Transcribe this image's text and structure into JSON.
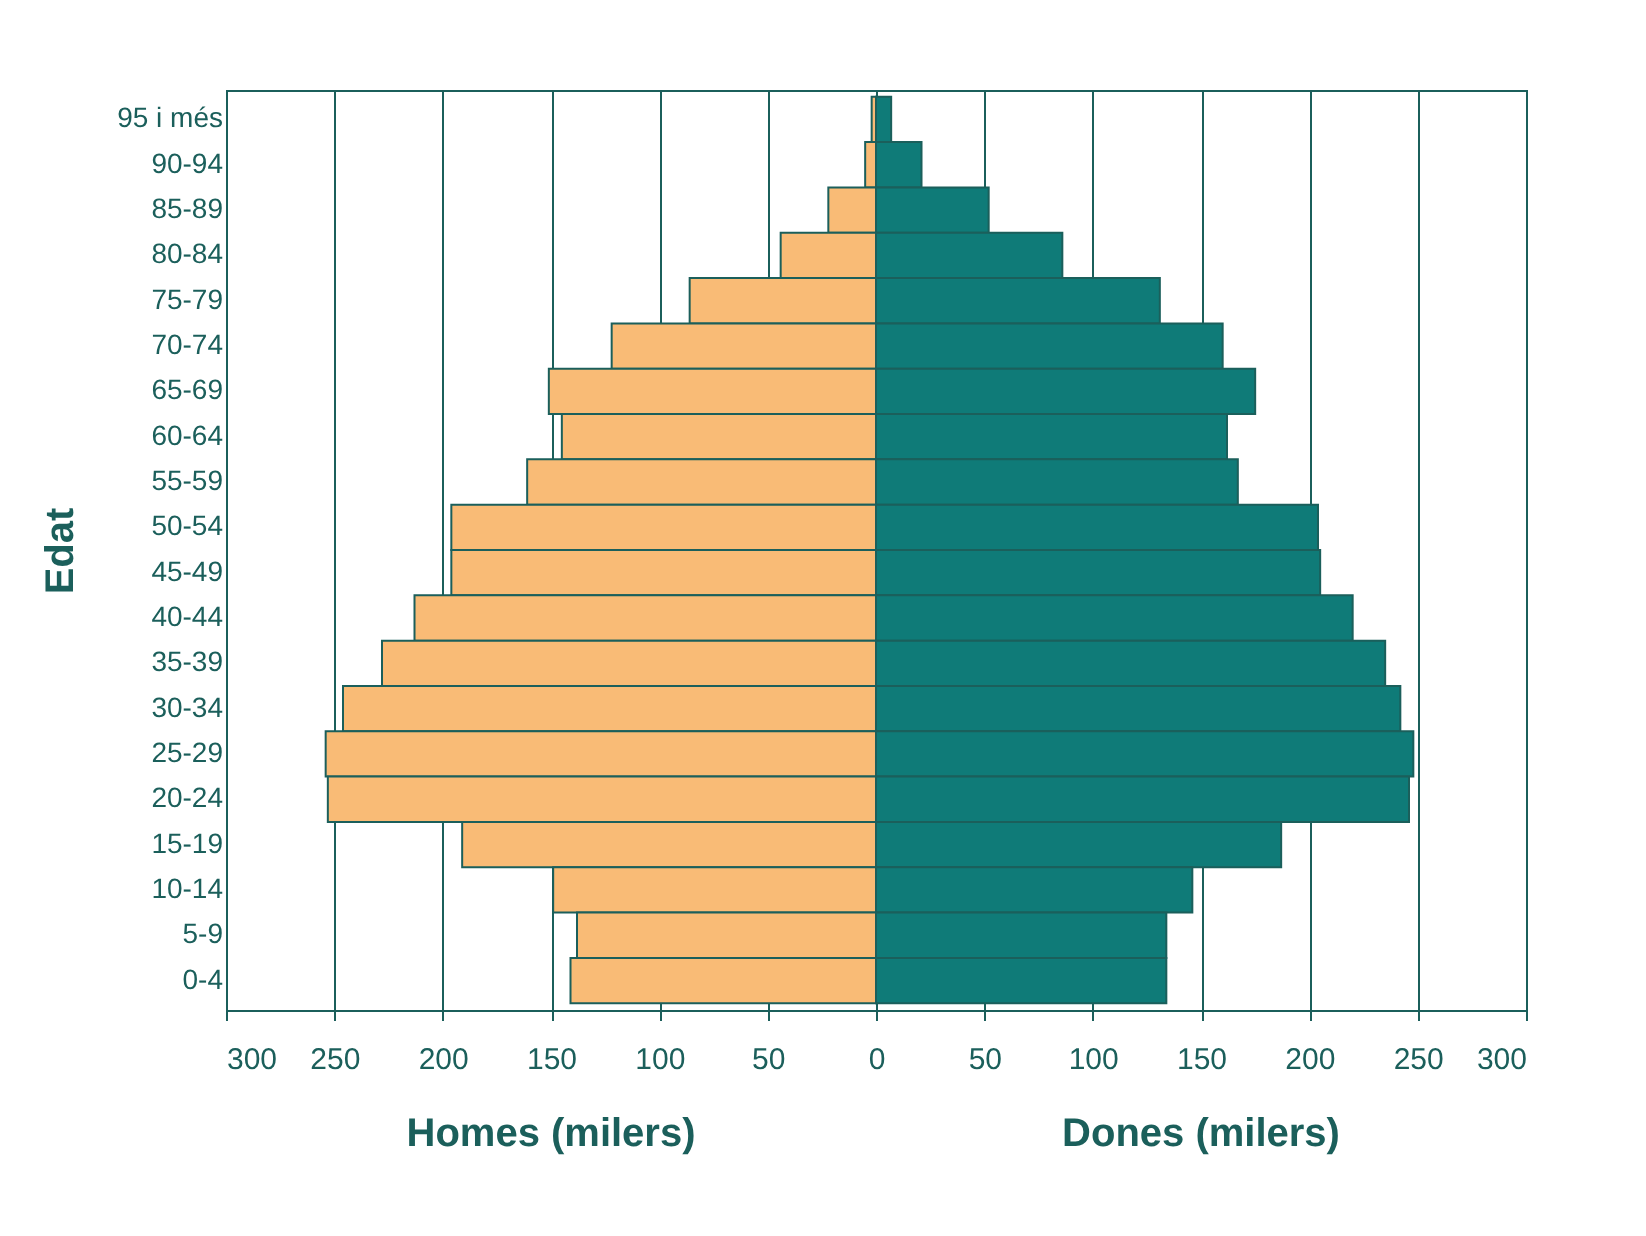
{
  "chart_data": {
    "type": "bar",
    "orientation": "horizontal",
    "ylabel": "Edat",
    "categories": [
      "95 i més",
      "90-94",
      "85-89",
      "80-84",
      "75-79",
      "70-74",
      "65-69",
      "60-64",
      "55-59",
      "50-54",
      "45-49",
      "40-44",
      "35-39",
      "30-34",
      "25-29",
      "20-24",
      "15-19",
      "10-14",
      "5-9",
      "0-4"
    ],
    "series": [
      {
        "name": "Homes (milers)",
        "color": "#f9bb76",
        "values": [
          -2,
          -5,
          -22,
          -44,
          -86,
          -122,
          -151,
          -145,
          -161,
          -196,
          -196,
          -213,
          -228,
          -246,
          -254,
          -253,
          -191,
          -149,
          -138,
          -141
        ]
      },
      {
        "name": "Dones (milers)",
        "color": "#0f7b78",
        "values": [
          7,
          21,
          52,
          86,
          131,
          160,
          175,
          162,
          167,
          204,
          205,
          220,
          235,
          242,
          248,
          246,
          187,
          146,
          134,
          134
        ]
      }
    ],
    "xlim": [
      -300,
      300
    ],
    "xticks": [
      {
        "value": -300,
        "label": "300"
      },
      {
        "value": -250,
        "label": "250"
      },
      {
        "value": -200,
        "label": "200"
      },
      {
        "value": -150,
        "label": "150"
      },
      {
        "value": -100,
        "label": "100"
      },
      {
        "value": -50,
        "label": "50"
      },
      0,
      50,
      100,
      150,
      200,
      250,
      300
    ],
    "grid": "x",
    "legend": false,
    "stacked": true
  }
}
